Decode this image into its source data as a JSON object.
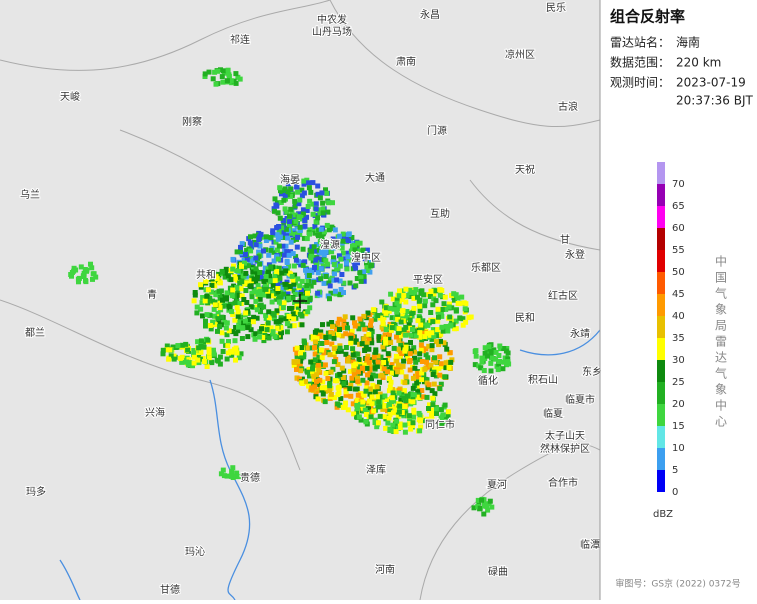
{
  "map": {
    "labels": [
      "民乐",
      "永昌",
      "中农发",
      "山丹马场",
      "祁连",
      "肃南",
      "凉州区",
      "天峻",
      "刚察",
      "古浪",
      "门源",
      "天祝",
      "海晏",
      "大通",
      "乌兰",
      "互助",
      "甘",
      "永登",
      "湟源",
      "湟中区",
      "共和",
      "乐都区",
      "平安区",
      "青",
      "红古区",
      "都兰",
      "民和",
      "永靖",
      "循化",
      "积石山",
      "东乡",
      "兴海",
      "临夏市",
      "临夏",
      "同仁市",
      "太子山天",
      "然林保护区",
      "贵德",
      "泽库",
      "夏河",
      "合作市",
      "玛多",
      "玛沁",
      "河南",
      "碌曲",
      "临潭",
      "甘德"
    ]
  },
  "panel": {
    "title": "组合反射率",
    "station_label": "雷达站名：",
    "station": "海南",
    "range_label": "数据范围：",
    "range": "220 km",
    "time_label": "观测时间：",
    "date": "2023-07-19",
    "time": "20:37:36 BJT"
  },
  "legend": {
    "ticks": [
      0,
      5,
      10,
      15,
      20,
      25,
      30,
      35,
      40,
      45,
      50,
      55,
      60,
      65,
      70
    ],
    "colors": [
      "#0000f6",
      "#3c9ff0",
      "#62e6e6",
      "#3fd63f",
      "#22b022",
      "#0e8a0e",
      "#ffff00",
      "#e8c000",
      "#ff9a00",
      "#ff5a00",
      "#e00000",
      "#b40000",
      "#ff00f0",
      "#9600b4",
      "#b496f0"
    ],
    "unit": "dBZ",
    "source": "中国气象局雷达气象中心"
  },
  "footer": "审图号：GS京 (2022) 0372号"
}
